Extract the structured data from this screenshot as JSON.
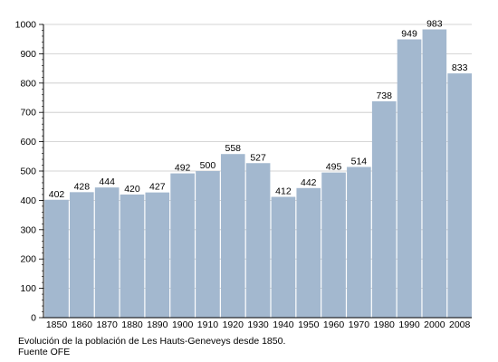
{
  "chart_data": {
    "type": "bar",
    "categories": [
      "1850",
      "1860",
      "1870",
      "1880",
      "1890",
      "1900",
      "1910",
      "1920",
      "1930",
      "1940",
      "1950",
      "1960",
      "1970",
      "1980",
      "1990",
      "2000",
      "2008"
    ],
    "values": [
      402,
      428,
      444,
      420,
      427,
      492,
      500,
      558,
      527,
      412,
      442,
      495,
      514,
      738,
      949,
      983,
      833
    ],
    "data_labels": [
      "402",
      "428",
      "444",
      "420",
      "427",
      "492",
      "500",
      "558",
      "527",
      "412",
      "442",
      "495",
      "514",
      "738",
      "949",
      "983",
      "833"
    ],
    "ylim": [
      0,
      1000
    ],
    "yticks": [
      "0",
      "100",
      "200",
      "300",
      "400",
      "500",
      "600",
      "700",
      "800",
      "900",
      "1000"
    ],
    "grid": true,
    "legend": "none",
    "colors": {
      "bar": "#a3b8cf",
      "grid": "#c8c8c8",
      "axis": "#000000",
      "text": "#000000"
    }
  },
  "caption": {
    "line1": "Evolución de la población de Les Hauts-Geneveys desde 1850.",
    "line2": "Fuente OFE"
  }
}
